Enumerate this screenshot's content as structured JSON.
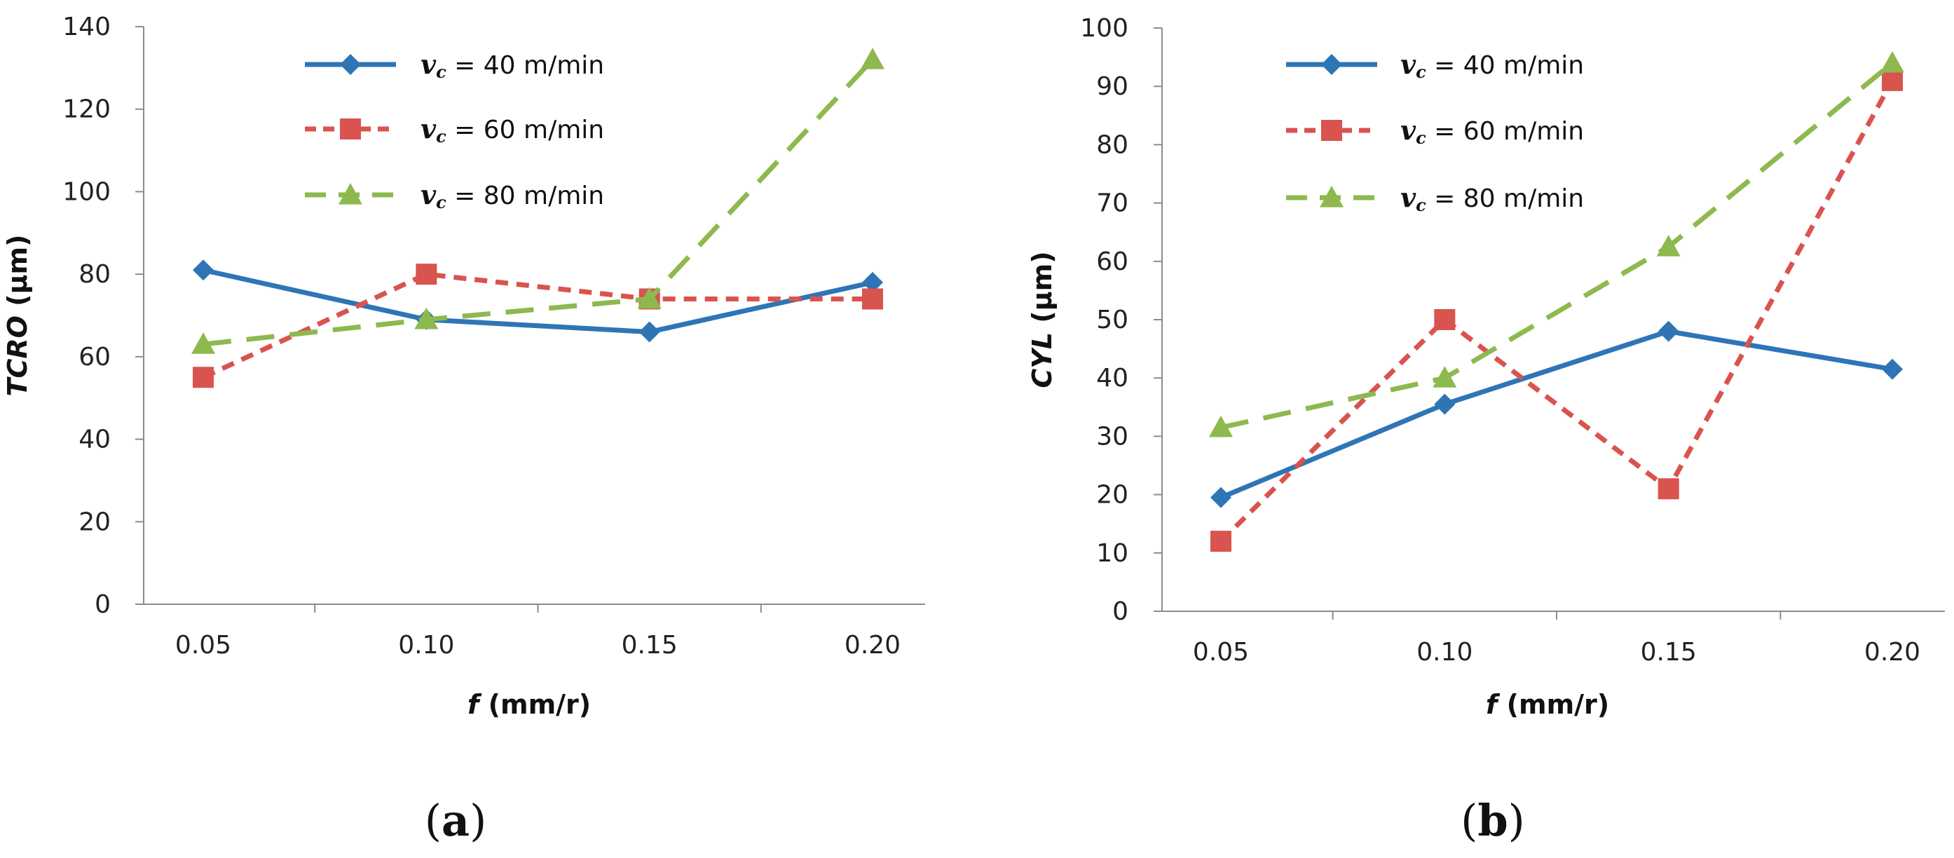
{
  "figure": {
    "captions": [
      {
        "open": "(",
        "letter": "a",
        "close": ")"
      },
      {
        "open": "(",
        "letter": "b",
        "close": ")"
      }
    ]
  },
  "series_styles": [
    {
      "color": "#2E75B6",
      "marker": "diamond",
      "dash": "solid"
    },
    {
      "color": "#D9534F",
      "marker": "square",
      "dash": "dashed"
    },
    {
      "color": "#8DB94E",
      "marker": "triangle",
      "dash": "long-dashed"
    }
  ],
  "chart_data": [
    {
      "type": "line",
      "panel": "a",
      "title": "",
      "xlabel_italic": "f",
      "xlabel_rest": " (mm/r)",
      "ylabel_italic": "TCRO",
      "ylabel_rest": " (µm)",
      "categories": [
        "0.05",
        "0.10",
        "0.15",
        "0.20"
      ],
      "ylim": [
        0,
        140
      ],
      "yticks": [
        0,
        20,
        40,
        60,
        80,
        100,
        120,
        140
      ],
      "legend_position": "top-center",
      "series": [
        {
          "symbol": "v",
          "subscript": "c",
          "label_suffix": " = 40 m/min",
          "values": [
            81,
            69,
            66,
            78
          ]
        },
        {
          "symbol": "v",
          "subscript": "c",
          "label_suffix": " = 60 m/min",
          "values": [
            55,
            80,
            74,
            74
          ]
        },
        {
          "symbol": "v",
          "subscript": "c",
          "label_suffix": " = 80 m/min",
          "values": [
            63,
            69,
            74,
            132
          ]
        }
      ]
    },
    {
      "type": "line",
      "panel": "b",
      "title": "",
      "xlabel_italic": "f",
      "xlabel_rest": " (mm/r)",
      "ylabel_italic": "CYL",
      "ylabel_rest": " (µm)",
      "categories": [
        "0.05",
        "0.10",
        "0.15",
        "0.20"
      ],
      "ylim": [
        0,
        100
      ],
      "yticks": [
        0,
        10,
        20,
        30,
        40,
        50,
        60,
        70,
        80,
        90,
        100
      ],
      "legend_position": "top-left",
      "series": [
        {
          "symbol": "v",
          "subscript": "c",
          "label_suffix": " = 40 m/min",
          "values": [
            19.5,
            35.5,
            48,
            41.5
          ]
        },
        {
          "symbol": "v",
          "subscript": "c",
          "label_suffix": " = 60 m/min",
          "values": [
            12,
            50,
            21,
            91
          ]
        },
        {
          "symbol": "v",
          "subscript": "c",
          "label_suffix": " = 80 m/min",
          "values": [
            31.5,
            40,
            62.5,
            94
          ]
        }
      ]
    }
  ]
}
